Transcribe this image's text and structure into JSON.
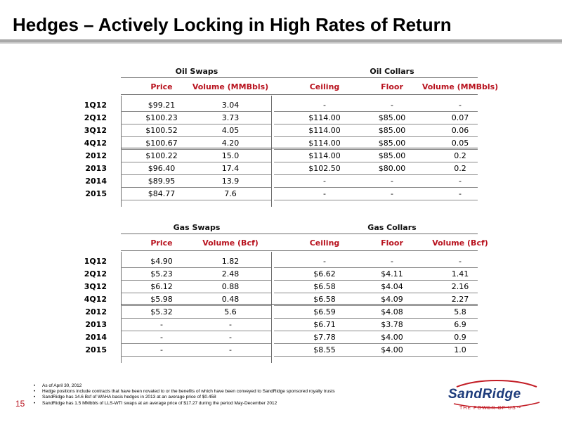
{
  "title": "Hedges – Actively Locking in High Rates of Return",
  "page_number": "15",
  "oil": {
    "swaps_label": "Oil Swaps",
    "collars_label": "Oil Collars",
    "columns": [
      "Price",
      "Volume (MMBbls)",
      "Ceiling",
      "Floor",
      "Volume (MMBbls)"
    ],
    "quarters": [
      {
        "label": "1Q12",
        "price": "$99.21",
        "volume": "3.04",
        "ceiling": "-",
        "floor": "-",
        "cvolume": "-"
      },
      {
        "label": "2Q12",
        "price": "$100.23",
        "volume": "3.73",
        "ceiling": "$114.00",
        "floor": "$85.00",
        "cvolume": "0.07"
      },
      {
        "label": "3Q12",
        "price": "$100.52",
        "volume": "4.05",
        "ceiling": "$114.00",
        "floor": "$85.00",
        "cvolume": "0.06"
      },
      {
        "label": "4Q12",
        "price": "$100.67",
        "volume": "4.20",
        "ceiling": "$114.00",
        "floor": "$85.00",
        "cvolume": "0.05"
      }
    ],
    "years": [
      {
        "label": "2012",
        "price": "$100.22",
        "volume": "15.0",
        "ceiling": "$114.00",
        "floor": "$85.00",
        "cvolume": "0.2"
      },
      {
        "label": "2013",
        "price": "$96.40",
        "volume": "17.4",
        "ceiling": "$102.50",
        "floor": "$80.00",
        "cvolume": "0.2"
      },
      {
        "label": "2014",
        "price": "$89.95",
        "volume": "13.9",
        "ceiling": "-",
        "floor": "-",
        "cvolume": "-"
      },
      {
        "label": "2015",
        "price": "$84.77",
        "volume": "7.6",
        "ceiling": "-",
        "floor": "-",
        "cvolume": "-"
      }
    ]
  },
  "gas": {
    "swaps_label": "Gas Swaps",
    "collars_label": "Gas Collars",
    "columns": [
      "Price",
      "Volume (Bcf)",
      "Ceiling",
      "Floor",
      "Volume (Bcf)"
    ],
    "quarters": [
      {
        "label": "1Q12",
        "price": "$4.90",
        "volume": "1.82",
        "ceiling": "-",
        "floor": "-",
        "cvolume": "-"
      },
      {
        "label": "2Q12",
        "price": "$5.23",
        "volume": "2.48",
        "ceiling": "$6.62",
        "floor": "$4.11",
        "cvolume": "1.41"
      },
      {
        "label": "3Q12",
        "price": "$6.12",
        "volume": "0.88",
        "ceiling": "$6.58",
        "floor": "$4.04",
        "cvolume": "2.16"
      },
      {
        "label": "4Q12",
        "price": "$5.98",
        "volume": "0.48",
        "ceiling": "$6.58",
        "floor": "$4.09",
        "cvolume": "2.27"
      }
    ],
    "years": [
      {
        "label": "2012",
        "price": "$5.32",
        "volume": "5.6",
        "ceiling": "$6.59",
        "floor": "$4.08",
        "cvolume": "5.8"
      },
      {
        "label": "2013",
        "price": "-",
        "volume": "-",
        "ceiling": "$6.71",
        "floor": "$3.78",
        "cvolume": "6.9"
      },
      {
        "label": "2014",
        "price": "-",
        "volume": "-",
        "ceiling": "$7.78",
        "floor": "$4.00",
        "cvolume": "0.9"
      },
      {
        "label": "2015",
        "price": "-",
        "volume": "-",
        "ceiling": "$8.55",
        "floor": "$4.00",
        "cvolume": "1.0"
      }
    ]
  },
  "footnotes": [
    "As of April 30, 2012",
    "Hedge positions include contracts that have been novated to or the benefits of which have been conveyed to SandRidge sponsored royalty trusts",
    "SandRidge has 14.6 Bcf of WAHA basis hedges in 2013 at an average price of $0.458",
    "SandRidge has 1.5 MMbbls of LLS-WTI swaps at an average price of $17.27 during the period May-December 2012"
  ],
  "logo": {
    "name": "SandRidge",
    "tagline": "THE POWER OF US™"
  }
}
